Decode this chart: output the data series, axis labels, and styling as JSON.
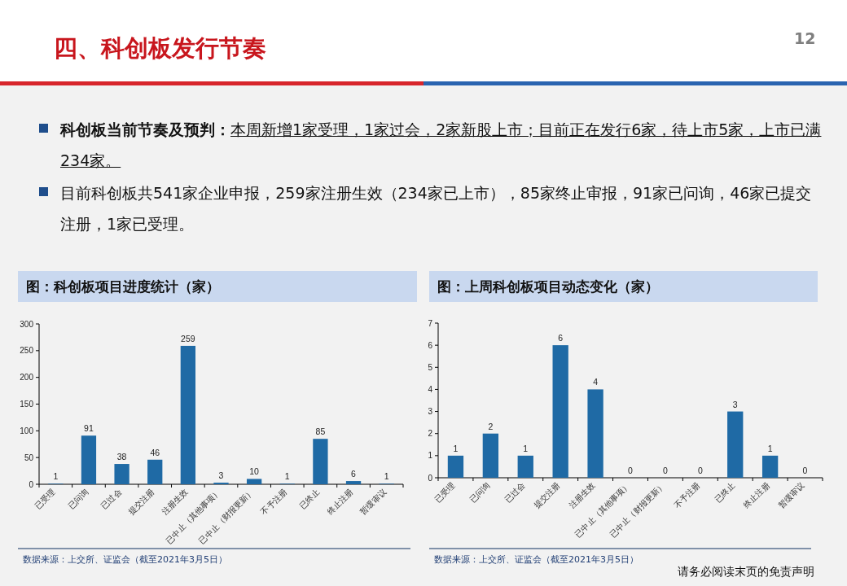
{
  "chart_data": [
    {
      "type": "other",
      "title": "四、科创板发行节奏",
      "annotations": [
        "**科创板当前节奏及预判：**本周新增1家受理，1家过会，2家新股上市；目前正在发行6家，待上市5家，上市已满234家。",
        "目前科创板共541家企业申报，259家注册生效（234家已上市），85家终止审报，91家已问询，46家已提交注册，1家已受理。",
        "12",
        "请务必阅读末页的免责声明"
      ]
    },
    {
      "type": "bar",
      "title": "图：科创板项目进度统计（家）",
      "categories": [
        "已受理",
        "已问询",
        "已过会",
        "提交注册",
        "注册生效",
        "已中止（其他事项）",
        "已中止（财报更新）",
        "不予注册",
        "已终止",
        "终止注册",
        "暂缓审议"
      ],
      "values": [
        1,
        91,
        38,
        46,
        259,
        3,
        10,
        1,
        85,
        6,
        1
      ],
      "color": "#1f6aa5",
      "ylim": [
        0,
        300
      ],
      "yticks": [
        0,
        50,
        100,
        150,
        200,
        250,
        300
      ],
      "data_labels": true,
      "annotations": [
        "数据来源：上交所、证监会（截至2021年3月5日）"
      ]
    },
    {
      "type": "bar",
      "title": "图：上周科创板项目动态变化（家）",
      "categories": [
        "已受理",
        "已问询",
        "已过会",
        "提交注册",
        "注册生效",
        "已中止（其他事项）",
        "已中止（财报更新）",
        "不予注册",
        "已终止",
        "终止注册",
        "暂缓审议"
      ],
      "values": [
        1,
        2,
        1,
        6,
        4,
        0,
        0,
        0,
        3,
        1,
        0
      ],
      "color": "#1f6aa5",
      "ylim": [
        0,
        7
      ],
      "yticks": [
        0,
        1,
        2,
        3,
        4,
        5,
        6,
        7
      ],
      "data_labels": true,
      "annotations": [
        "数据来源：上交所、证监会（截至2021年3月5日）"
      ]
    }
  ]
}
